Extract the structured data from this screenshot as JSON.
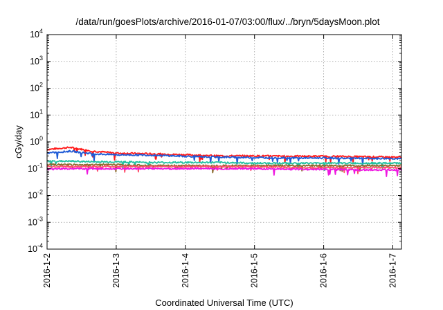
{
  "chart_data": {
    "type": "line",
    "title": "/data/run/goesPlots/archive/2016-01-07/03:00/flux/../bryn/5daysMoon.plot",
    "xlabel": "Coordinated Universal Time (UTC)",
    "ylabel": "cGy/day",
    "yscale": "log",
    "ylim": [
      0.0001,
      10000
    ],
    "y_ticks": [
      {
        "base": "10",
        "exp": "-4"
      },
      {
        "base": "10",
        "exp": "-3"
      },
      {
        "base": "10",
        "exp": "-2"
      },
      {
        "base": "10",
        "exp": "-1"
      },
      {
        "base": "10",
        "exp": "0"
      },
      {
        "base": "10",
        "exp": "1"
      },
      {
        "base": "10",
        "exp": "2"
      },
      {
        "base": "10",
        "exp": "3"
      },
      {
        "base": "10",
        "exp": "4"
      }
    ],
    "xlim": [
      "2016-01-02",
      "2016-01-07 03:00"
    ],
    "x_ticks": [
      "2016-1-2",
      "2016-1-3",
      "2016-1-4",
      "2016-1-5",
      "2016-1-6",
      "2016-1-7"
    ],
    "grid": true,
    "series": [
      {
        "color": "#ff1a1a",
        "x": [
          "2016-01-02",
          "2016-01-02 08:00",
          "2016-01-02 16:00",
          "2016-01-03",
          "2016-01-03 12:00",
          "2016-01-04",
          "2016-01-04 12:00",
          "2016-01-05",
          "2016-01-05 12:00",
          "2016-01-06",
          "2016-01-06 12:00",
          "2016-01-07",
          "2016-01-07 03:00"
        ],
        "values": [
          0.52,
          0.62,
          0.45,
          0.38,
          0.36,
          0.33,
          0.3,
          0.3,
          0.29,
          0.29,
          0.28,
          0.27,
          0.27
        ]
      },
      {
        "color": "#1f5bd6",
        "x": [
          "2016-01-02",
          "2016-01-02 08:00",
          "2016-01-02 16:00",
          "2016-01-03",
          "2016-01-03 12:00",
          "2016-01-04",
          "2016-01-04 12:00",
          "2016-01-05",
          "2016-01-05 12:00",
          "2016-01-06",
          "2016-01-06 12:00",
          "2016-01-07",
          "2016-01-07 03:00"
        ],
        "values": [
          0.38,
          0.45,
          0.36,
          0.33,
          0.32,
          0.29,
          0.27,
          0.26,
          0.25,
          0.25,
          0.24,
          0.24,
          0.23
        ]
      },
      {
        "color": "#22c1a0",
        "x": [
          "2016-01-02",
          "2016-01-02 08:00",
          "2016-01-02 16:00",
          "2016-01-03",
          "2016-01-03 12:00",
          "2016-01-04",
          "2016-01-04 12:00",
          "2016-01-05",
          "2016-01-05 12:00",
          "2016-01-06",
          "2016-01-06 12:00",
          "2016-01-07",
          "2016-01-07 03:00"
        ],
        "values": [
          0.19,
          0.19,
          0.18,
          0.18,
          0.17,
          0.17,
          0.17,
          0.16,
          0.16,
          0.16,
          0.16,
          0.16,
          0.16
        ]
      },
      {
        "color": "#8a6a2a",
        "x": [
          "2016-01-02",
          "2016-01-02 08:00",
          "2016-01-02 16:00",
          "2016-01-03",
          "2016-01-03 12:00",
          "2016-01-04",
          "2016-01-04 12:00",
          "2016-01-05",
          "2016-01-05 12:00",
          "2016-01-06",
          "2016-01-06 12:00",
          "2016-01-07",
          "2016-01-07 03:00"
        ],
        "values": [
          0.14,
          0.14,
          0.14,
          0.14,
          0.13,
          0.13,
          0.13,
          0.13,
          0.13,
          0.13,
          0.13,
          0.13,
          0.13
        ]
      },
      {
        "color": "#ff4d6a",
        "x": [
          "2016-01-02",
          "2016-01-02 08:00",
          "2016-01-02 16:00",
          "2016-01-03",
          "2016-01-03 12:00",
          "2016-01-04",
          "2016-01-04 12:00",
          "2016-01-05",
          "2016-01-05 12:00",
          "2016-01-06",
          "2016-01-06 12:00",
          "2016-01-07",
          "2016-01-07 03:00"
        ],
        "values": [
          0.12,
          0.12,
          0.12,
          0.12,
          0.12,
          0.12,
          0.12,
          0.12,
          0.11,
          0.11,
          0.11,
          0.11,
          0.11
        ]
      },
      {
        "color": "#ee18e0",
        "x": [
          "2016-01-02",
          "2016-01-02 08:00",
          "2016-01-02 16:00",
          "2016-01-03",
          "2016-01-03 12:00",
          "2016-01-04",
          "2016-01-04 12:00",
          "2016-01-05",
          "2016-01-05 12:00",
          "2016-01-06",
          "2016-01-06 12:00",
          "2016-01-07",
          "2016-01-07 03:00"
        ],
        "values": [
          0.095,
          0.1,
          0.1,
          0.1,
          0.1,
          0.1,
          0.1,
          0.1,
          0.095,
          0.095,
          0.09,
          0.09,
          0.09
        ]
      }
    ]
  }
}
